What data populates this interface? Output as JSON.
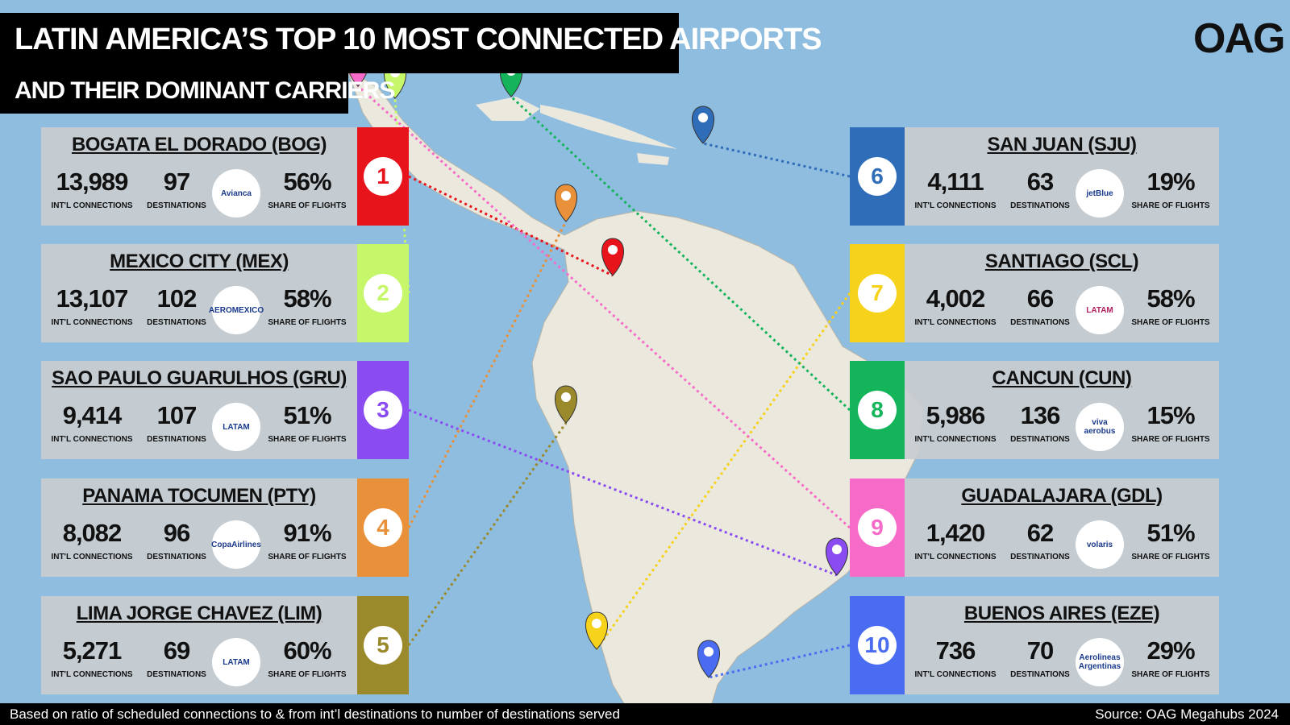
{
  "header": {
    "title": "LATIN AMERICA’S TOP 10 MOST CONNECTED AIRPORTS",
    "subtitle": "AND THEIR DOMINANT CARRIERS",
    "logo": "OAG"
  },
  "labels": {
    "connections": "INT'L CONNECTIONS",
    "destinations": "DESTINATIONS",
    "share": "SHARE OF FLIGHTS"
  },
  "airports": [
    {
      "rank": "1",
      "name": "BOGATA EL DORADO (BOG)",
      "connections": "13,989",
      "destinations": "97",
      "carrier": "Avianca",
      "share": "56%",
      "color": "#e8141c"
    },
    {
      "rank": "2",
      "name": "MEXICO CITY  (MEX)",
      "connections": "13,107",
      "destinations": "102",
      "carrier": "AEROMEXICO",
      "share": "58%",
      "color": "#c6f76a"
    },
    {
      "rank": "3",
      "name": "SAO PAULO GUARULHOS (GRU)",
      "connections": "9,414",
      "destinations": "107",
      "carrier": "LATAM",
      "share": "51%",
      "color": "#8a4cf0"
    },
    {
      "rank": "4",
      "name": "PANAMA TOCUMEN (PTY)",
      "connections": "8,082",
      "destinations": "96",
      "carrier": "CopaAirlines",
      "share": "91%",
      "color": "#e8913a"
    },
    {
      "rank": "5",
      "name": "LIMA JORGE CHAVEZ (LIM)",
      "connections": "5,271",
      "destinations": "69",
      "carrier": "LATAM",
      "share": "60%",
      "color": "#9a8a2c"
    },
    {
      "rank": "6",
      "name": "SAN JUAN (SJU)",
      "connections": "4,111",
      "destinations": "63",
      "carrier": "jetBlue",
      "share": "19%",
      "color": "#2f6db8"
    },
    {
      "rank": "7",
      "name": "SANTIAGO (SCL)",
      "connections": "4,002",
      "destinations": "66",
      "carrier": "LATAM",
      "share": "58%",
      "color": "#f7d21a"
    },
    {
      "rank": "8",
      "name": "CANCUN (CUN)",
      "connections": "5,986",
      "destinations": "136",
      "carrier": "viva aerobus",
      "share": "15%",
      "color": "#13b45a"
    },
    {
      "rank": "9",
      "name": "GUADALAJARA (GDL)",
      "connections": "1,420",
      "destinations": "62",
      "carrier": "volaris",
      "share": "51%",
      "color": "#f76bc8"
    },
    {
      "rank": "10",
      "name": "BUENOS AIRES (EZE)",
      "connections": "736",
      "destinations": "70",
      "carrier": "Aerolineas Argentinas",
      "share": "29%",
      "color": "#4a6cf0"
    }
  ],
  "footer": {
    "note": "Based on ratio of scheduled connections to & from int’l destinations to number of destinations served",
    "source": "Source: OAG Megahubs 2024"
  }
}
